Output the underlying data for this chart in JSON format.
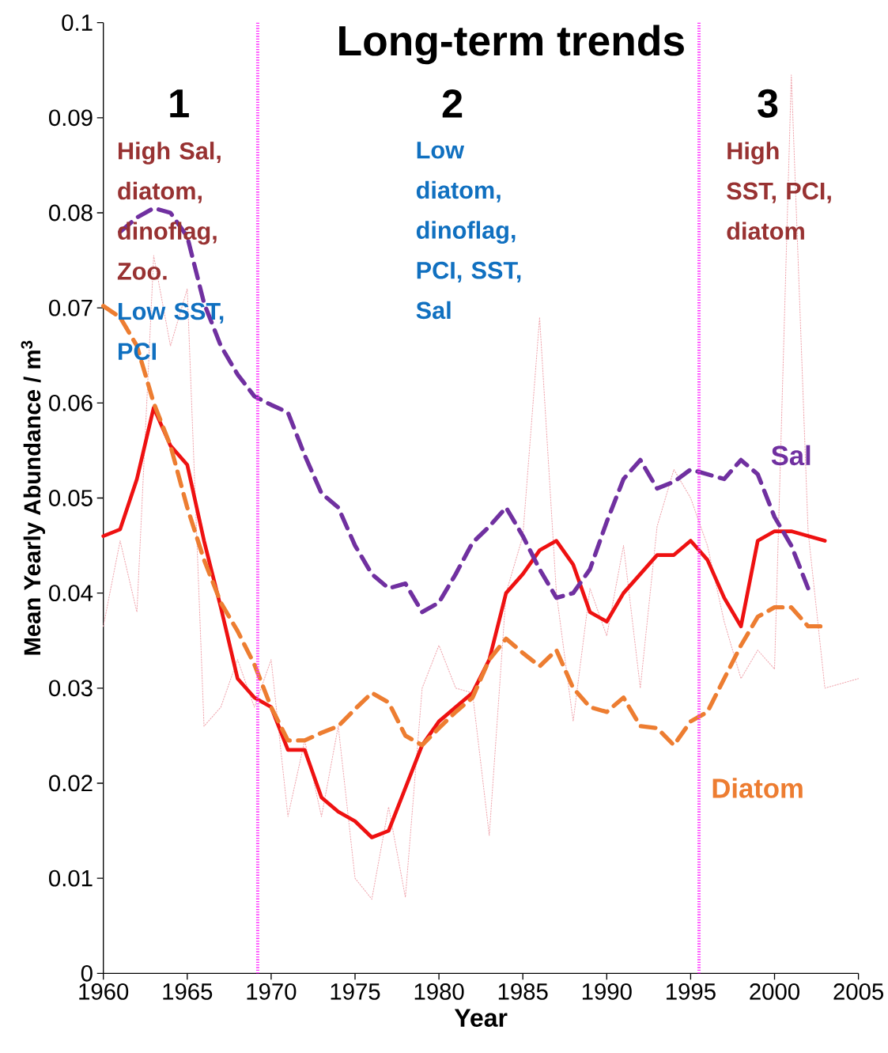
{
  "chart_data": {
    "type": "line",
    "title": "Long-term trends",
    "xlabel": "Year",
    "ylabel": "Mean Yearly Abundance / m$^{3}$",
    "xlim": [
      1960,
      2005
    ],
    "xticks": [
      1960,
      1965,
      1970,
      1975,
      1980,
      1985,
      1990,
      1995,
      2000,
      2005
    ],
    "ylim": [
      0,
      0.1
    ],
    "yticks": [
      0,
      0.01,
      0.02,
      0.03,
      0.04,
      0.05,
      0.06,
      0.07,
      0.08,
      0.09,
      0.1
    ],
    "marker": "none",
    "series": [
      {
        "color": "#f0a8b0",
        "line_style": "dotted",
        "x": [
          1960,
          1961,
          1962,
          1963,
          1964,
          1965,
          1966,
          1967,
          1968,
          1969,
          1970,
          1971,
          1972,
          1973,
          1974,
          1975,
          1976,
          1977,
          1978,
          1979,
          1980,
          1981,
          1982,
          1983,
          1984,
          1985,
          1986,
          1987,
          1988,
          1989,
          1990,
          1991,
          1992,
          1993,
          1994,
          1995,
          1996,
          1997,
          1998,
          1999,
          2000,
          2001,
          2002,
          2003,
          2005
        ],
        "values": [
          0.0365,
          0.0455,
          0.038,
          0.0755,
          0.066,
          0.072,
          0.026,
          0.028,
          0.033,
          0.028,
          0.033,
          0.0165,
          0.0245,
          0.0165,
          0.026,
          0.01,
          0.0078,
          0.0175,
          0.008,
          0.03,
          0.0345,
          0.03,
          0.0295,
          0.0145,
          0.04,
          0.046,
          0.069,
          0.04,
          0.0265,
          0.0405,
          0.0355,
          0.045,
          0.03,
          0.047,
          0.053,
          0.05,
          0.045,
          0.037,
          0.031,
          0.034,
          0.032,
          0.0945,
          0.0465,
          0.03,
          0.031
        ]
      },
      {
        "color": "#ee1111",
        "line_style": "solid",
        "x": [
          1960,
          1961,
          1962,
          1963,
          1964,
          1965,
          1966,
          1967,
          1968,
          1969,
          1970,
          1971,
          1972,
          1973,
          1974,
          1975,
          1976,
          1977,
          1978,
          1979,
          1980,
          1981,
          1982,
          1983,
          1984,
          1985,
          1986,
          1987,
          1988,
          1989,
          1990,
          1991,
          1992,
          1993,
          1994,
          1995,
          1996,
          1997,
          1998,
          1999,
          2000,
          2001,
          2002,
          2003
        ],
        "values": [
          0.046,
          0.0467,
          0.052,
          0.0595,
          0.0555,
          0.0535,
          0.0455,
          0.0385,
          0.031,
          0.029,
          0.028,
          0.0235,
          0.0235,
          0.0185,
          0.017,
          0.016,
          0.0143,
          0.015,
          0.0195,
          0.024,
          0.0265,
          0.028,
          0.0295,
          0.033,
          0.04,
          0.042,
          0.0445,
          0.0455,
          0.043,
          0.038,
          0.037,
          0.04,
          0.042,
          0.044,
          0.044,
          0.0455,
          0.0435,
          0.0395,
          0.0365,
          0.0455,
          0.0465,
          0.0465,
          0.046,
          0.0455
        ]
      },
      {
        "name": "Sal",
        "color": "#7030a0",
        "line_style": "dashed",
        "x": [
          1961,
          1962,
          1963,
          1964,
          1965,
          1966,
          1967,
          1968,
          1969,
          1970,
          1971,
          1972,
          1973,
          1974,
          1975,
          1976,
          1977,
          1978,
          1979,
          1980,
          1981,
          1982,
          1983,
          1984,
          1985,
          1986,
          1987,
          1988,
          1989,
          1990,
          1991,
          1992,
          1993,
          1994,
          1995,
          1996,
          1997,
          1998,
          1999,
          2000,
          2001,
          2002
        ],
        "values": [
          0.078,
          0.0795,
          0.0805,
          0.08,
          0.0775,
          0.0705,
          0.066,
          0.063,
          0.0607,
          0.0598,
          0.059,
          0.0545,
          0.0505,
          0.049,
          0.045,
          0.042,
          0.0405,
          0.041,
          0.038,
          0.039,
          0.042,
          0.0453,
          0.047,
          0.049,
          0.046,
          0.0425,
          0.0395,
          0.04,
          0.0425,
          0.0475,
          0.052,
          0.054,
          0.051,
          0.0517,
          0.053,
          0.0525,
          0.052,
          0.054,
          0.0525,
          0.048,
          0.045,
          0.0405
        ]
      },
      {
        "name": "Diatom",
        "color": "#ed7d31",
        "line_style": "dashed",
        "x": [
          1960,
          1961,
          1962,
          1963,
          1964,
          1965,
          1966,
          1967,
          1968,
          1969,
          1970,
          1971,
          1972,
          1973,
          1974,
          1975,
          1976,
          1977,
          1978,
          1979,
          1980,
          1981,
          1982,
          1983,
          1984,
          1985,
          1986,
          1987,
          1988,
          1989,
          1990,
          1991,
          1992,
          1993,
          1994,
          1995,
          1996,
          1997,
          1998,
          1999,
          2000,
          2001,
          2002,
          2003
        ],
        "values": [
          0.0702,
          0.069,
          0.066,
          0.06,
          0.0555,
          0.049,
          0.0435,
          0.039,
          0.036,
          0.0325,
          0.028,
          0.0245,
          0.0245,
          0.0253,
          0.026,
          0.0278,
          0.0295,
          0.0285,
          0.025,
          0.024,
          0.0258,
          0.0275,
          0.029,
          0.033,
          0.0352,
          0.0337,
          0.0323,
          0.034,
          0.03,
          0.028,
          0.0275,
          0.029,
          0.026,
          0.0258,
          0.024,
          0.0265,
          0.0275,
          0.031,
          0.0345,
          0.0375,
          0.0385,
          0.0385,
          0.0365,
          0.0365
        ]
      }
    ],
    "ref_lines": [
      {
        "axis": "x",
        "value": 1969.2,
        "color": "#ff33ff",
        "line_style": "dotted"
      },
      {
        "axis": "x",
        "value": 1995.5,
        "color": "#ff33ff",
        "line_style": "dotted"
      }
    ],
    "annotations": [
      "1",
      "2",
      "3",
      "High Sal, diatom, dinoflag, Zoo.",
      "Low SST, PCI",
      "Low diatom, dinoflag, PCI, SST, Sal",
      "High SST, PCI, diatom"
    ]
  }
}
